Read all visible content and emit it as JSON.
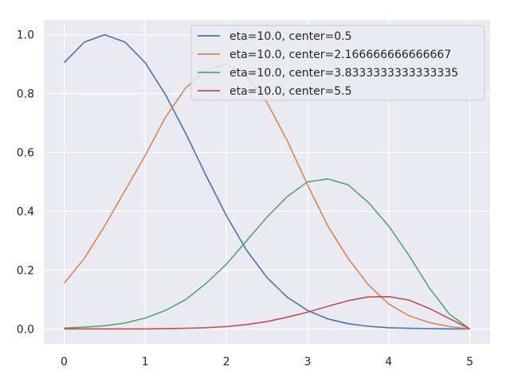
{
  "chart_data": {
    "type": "line",
    "title": "",
    "xlabel": "",
    "ylabel": "",
    "xlim": [
      -0.25,
      5.25
    ],
    "ylim": [
      -0.0505,
      1.0505
    ],
    "x_ticks": [
      "0",
      "1",
      "2",
      "3",
      "4",
      "5"
    ],
    "y_ticks": [
      "0.0",
      "0.2",
      "0.4",
      "0.6",
      "0.8",
      "1.0"
    ],
    "grid": true,
    "background_color": "#EAEAF2",
    "grid_color": "#FFFFFF",
    "legend_position": "top-right",
    "x": [
      0,
      0.25,
      0.5,
      0.75,
      1,
      1.25,
      1.5,
      1.75,
      2,
      2.25,
      2.5,
      2.75,
      3,
      3.25,
      3.5,
      3.75,
      4,
      4.25,
      4.5,
      4.75,
      5
    ],
    "series": [
      {
        "name": "eta=10.0, center=0.5",
        "color": "#4C72B0",
        "values": [
          0.905,
          0.975,
          1.0,
          0.975,
          0.905,
          0.796,
          0.664,
          0.521,
          0.385,
          0.267,
          0.175,
          0.108,
          0.063,
          0.034,
          0.018,
          0.009,
          0.004,
          0.002,
          0.001,
          0.0,
          0.0
        ]
      },
      {
        "name": "eta=10.0, center=2.166666666666667",
        "color": "#DD8452",
        "values": [
          0.155,
          0.24,
          0.35,
          0.47,
          0.59,
          0.72,
          0.82,
          0.88,
          0.9,
          0.86,
          0.77,
          0.64,
          0.49,
          0.35,
          0.24,
          0.15,
          0.085,
          0.045,
          0.022,
          0.008,
          0.0
        ]
      },
      {
        "name": "eta=10.0, center=3.8333333333333335",
        "color": "#55A868",
        "values": [
          0.003,
          0.006,
          0.011,
          0.02,
          0.037,
          0.063,
          0.1,
          0.155,
          0.22,
          0.3,
          0.38,
          0.45,
          0.5,
          0.51,
          0.49,
          0.43,
          0.35,
          0.25,
          0.14,
          0.05,
          0.0
        ]
      },
      {
        "name": "eta=10.0, center=5.5",
        "color": "#C44E52",
        "values": [
          0.0,
          0.0,
          0.0,
          0.0,
          0.0,
          0.001,
          0.002,
          0.004,
          0.008,
          0.015,
          0.025,
          0.04,
          0.057,
          0.077,
          0.096,
          0.109,
          0.11,
          0.098,
          0.07,
          0.035,
          0.0
        ]
      }
    ]
  }
}
